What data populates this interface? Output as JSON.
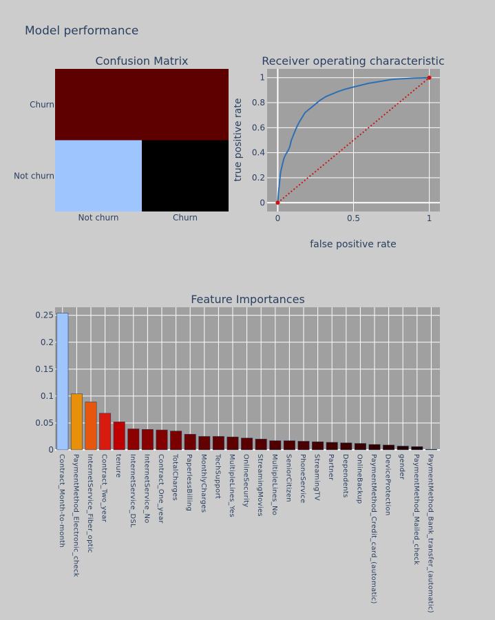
{
  "page_title": "Model performance",
  "chart_data": [
    {
      "type": "heatmap",
      "title": "Confusion Matrix",
      "x_categories": [
        "Not churn",
        "Churn"
      ],
      "y_categories": [
        "Not churn",
        "Churn"
      ],
      "cells": [
        {
          "row": "Churn",
          "col": "Not churn",
          "color": "#5e0000"
        },
        {
          "row": "Churn",
          "col": "Churn",
          "color": "#5e0000"
        },
        {
          "row": "Not churn",
          "col": "Not churn",
          "color": "#9fc5ff"
        },
        {
          "row": "Not churn",
          "col": "Churn",
          "color": "#000000"
        }
      ]
    },
    {
      "type": "line",
      "title": "Receiver operating characteristic",
      "xlabel": "false positive rate",
      "ylabel": "true positive rate",
      "xlim": [
        -0.07,
        1.07
      ],
      "ylim": [
        -0.07,
        1.07
      ],
      "x_ticks": [
        0,
        0.5,
        1
      ],
      "x_tick_labels": [
        "0",
        "0.5",
        "1"
      ],
      "y_ticks": [
        0,
        0.2,
        0.4,
        0.6,
        0.8,
        1
      ],
      "y_tick_labels": [
        "0",
        "0.2",
        "0.4",
        "0.6",
        "0.8",
        "1"
      ],
      "grid": true,
      "series": [
        {
          "color": "#2c6fb5",
          "style": "solid",
          "x": [
            0,
            0.005,
            0.01,
            0.015,
            0.02,
            0.03,
            0.04,
            0.05,
            0.06,
            0.07,
            0.08,
            0.09,
            0.1,
            0.12,
            0.14,
            0.16,
            0.18,
            0.2,
            0.22,
            0.25,
            0.28,
            0.32,
            0.36,
            0.4,
            0.45,
            0.5,
            0.55,
            0.6,
            0.65,
            0.7,
            0.75,
            0.8,
            0.85,
            0.9,
            0.95,
            1.0
          ],
          "y": [
            0,
            0.08,
            0.14,
            0.2,
            0.25,
            0.3,
            0.35,
            0.38,
            0.4,
            0.42,
            0.45,
            0.5,
            0.53,
            0.59,
            0.64,
            0.68,
            0.72,
            0.74,
            0.76,
            0.79,
            0.82,
            0.85,
            0.87,
            0.89,
            0.91,
            0.925,
            0.94,
            0.955,
            0.965,
            0.975,
            0.985,
            0.99,
            0.993,
            0.996,
            0.998,
            1.0
          ]
        },
        {
          "color": "#cc1111",
          "style": "dotted",
          "markers": true,
          "x": [
            0,
            1
          ],
          "y": [
            0,
            1
          ]
        }
      ]
    },
    {
      "type": "bar",
      "title": "Feature Importances",
      "ylim": [
        0,
        0.265
      ],
      "y_ticks": [
        0,
        0.05,
        0.1,
        0.15,
        0.2,
        0.25
      ],
      "y_tick_labels": [
        "0",
        "0.05",
        "0.1",
        "0.15",
        "0.2",
        "0.25"
      ],
      "grid": true,
      "categories": [
        "Contract_Month-to-month",
        "PaymentMethod_Electronic_check",
        "InternetService_Fiber_optic",
        "Contract_Two_year",
        "tenure",
        "InternetService_DSL",
        "InternetService_No",
        "Contract_One_year",
        "TotalCharges",
        "PaperlessBilling",
        "MonthlyCharges",
        "TechSupport",
        "MultipleLines_Yes",
        "OnlineSecurity",
        "StreamingMovies",
        "MultipleLines_No",
        "SeniorCitizen",
        "PhoneService",
        "StreamingTV",
        "Partner",
        "Dependents",
        "OnlineBackup",
        "PaymentMethod_Credit_card_(automatic)",
        "DeviceProtection",
        "gender",
        "PaymentMethod_Mailed_check",
        "PaymentMethod_Bank_transfer_(automatic)"
      ],
      "values": [
        0.254,
        0.104,
        0.089,
        0.068,
        0.052,
        0.039,
        0.038,
        0.037,
        0.035,
        0.029,
        0.025,
        0.025,
        0.024,
        0.022,
        0.02,
        0.017,
        0.017,
        0.016,
        0.015,
        0.014,
        0.013,
        0.012,
        0.01,
        0.009,
        0.007,
        0.006,
        0.001
      ],
      "colors": [
        "#9fc5ff",
        "#e8900a",
        "#e6570d",
        "#d91a0e",
        "#c00000",
        "#8d0000",
        "#880000",
        "#830000",
        "#7a0000",
        "#6d0000",
        "#630000",
        "#600000",
        "#5d0000",
        "#580000",
        "#540000",
        "#4e0000",
        "#4c0000",
        "#480000",
        "#440000",
        "#400000",
        "#3c0000",
        "#380000",
        "#300000",
        "#2c0000",
        "#240000",
        "#1e0000",
        "#0a0000"
      ]
    }
  ]
}
